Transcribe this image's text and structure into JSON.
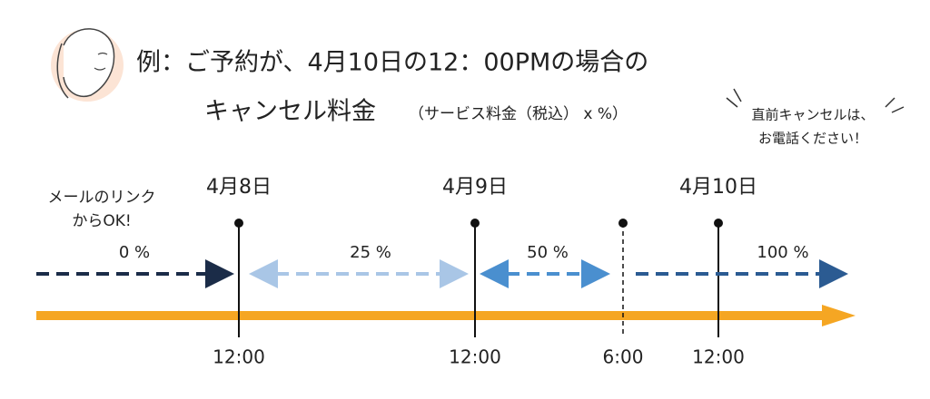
{
  "header": {
    "title_line1": "例：ご予約が、4月10日の12：00PMの場合の",
    "title_line2": "キャンセル料金",
    "subtitle": "（サービス料金（税込） x %）"
  },
  "note": [
    "直前キャンセルは、",
    "お電話ください！"
  ],
  "timeline": {
    "left_note": [
      "メールのリンク",
      "からOK!"
    ],
    "dates": [
      "4月8日",
      "4月9日",
      "4月10日"
    ],
    "segments": [
      {
        "label": "0 %"
      },
      {
        "label": "25 %"
      },
      {
        "label": "50 %"
      },
      {
        "label": "100 %"
      }
    ],
    "times": [
      "12:00",
      "12:00",
      "6:00",
      "12:00"
    ]
  }
}
